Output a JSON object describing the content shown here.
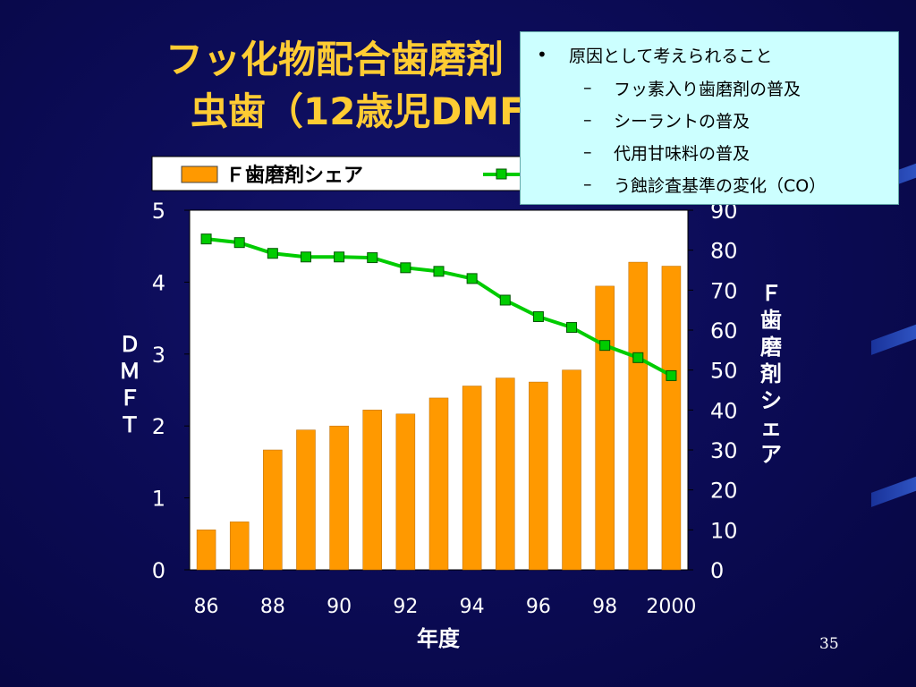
{
  "slide": {
    "title_line1": "フッ化物配合歯磨剤",
    "title_line2": "虫歯（12歳児DMF",
    "page_number": "35"
  },
  "callout": {
    "heading": "原因として考えられること",
    "items": [
      "フッ素入り歯磨剤の普及",
      "シーラントの普及",
      "代用甘味料の普及",
      "う蝕診査基準の変化（CO）"
    ]
  },
  "chart_data": {
    "type": "bar+line",
    "x": [
      1986,
      1987,
      1988,
      1989,
      1990,
      1991,
      1992,
      1993,
      1994,
      1995,
      1996,
      1997,
      1998,
      1999,
      2000
    ],
    "x_tick_labels": [
      "86",
      "88",
      "90",
      "92",
      "94",
      "96",
      "98",
      "2000"
    ],
    "xlabel": "年度",
    "y_left": {
      "label": "ＤＭＦＴ",
      "range": [
        0,
        5
      ],
      "ticks": [
        "0",
        "1",
        "2",
        "3",
        "4",
        "5"
      ]
    },
    "y_right": {
      "label": "Ｆ歯磨剤シェア",
      "range": [
        0,
        90
      ],
      "ticks": [
        "0",
        "10",
        "20",
        "30",
        "40",
        "50",
        "60",
        "70",
        "80",
        "90"
      ]
    },
    "series": [
      {
        "name": "Ｆ歯磨剤シェア",
        "kind": "bar",
        "axis": "right",
        "color": "#ff9900",
        "values": [
          10,
          12,
          30,
          35,
          36,
          40,
          39,
          43,
          46,
          48,
          47,
          50,
          71,
          77,
          76
        ]
      },
      {
        "kind": "line",
        "axis": "left",
        "color": "#00cc00",
        "values": [
          4.6,
          4.55,
          4.4,
          4.35,
          4.35,
          4.34,
          4.2,
          4.15,
          4.05,
          3.75,
          3.52,
          3.37,
          3.12,
          2.95,
          2.7
        ]
      }
    ],
    "legend_position": "top"
  }
}
